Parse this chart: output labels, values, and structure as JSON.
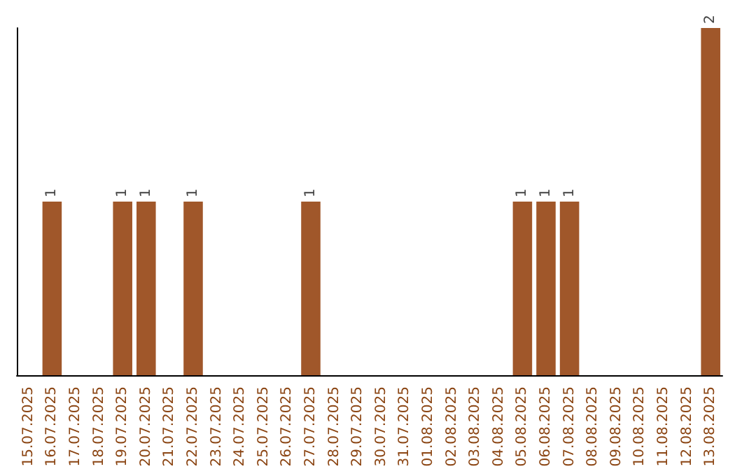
{
  "chart_data": {
    "type": "bar",
    "categories": [
      "15.07.2025",
      "16.07.2025",
      "17.07.2025",
      "18.07.2025",
      "19.07.2025",
      "20.07.2025",
      "21.07.2025",
      "22.07.2025",
      "23.07.2025",
      "24.07.2025",
      "25.07.2025",
      "26.07.2025",
      "27.07.2025",
      "28.07.2025",
      "29.07.2025",
      "30.07.2025",
      "31.07.2025",
      "01.08.2025",
      "02.08.2025",
      "03.08.2025",
      "04.08.2025",
      "05.08.2025",
      "06.08.2025",
      "07.08.2025",
      "08.08.2025",
      "09.08.2025",
      "10.08.2025",
      "11.08.2025",
      "12.08.2025",
      "13.08.2025"
    ],
    "values": [
      0,
      1,
      0,
      0,
      1,
      1,
      0,
      1,
      0,
      0,
      0,
      0,
      1,
      0,
      0,
      0,
      0,
      0,
      0,
      0,
      0,
      1,
      1,
      1,
      0,
      0,
      0,
      0,
      0,
      2
    ],
    "value_labels": [
      null,
      "1",
      null,
      null,
      "1",
      "1",
      null,
      "1",
      null,
      null,
      null,
      null,
      "1",
      null,
      null,
      null,
      null,
      null,
      null,
      null,
      null,
      "1",
      "1",
      "1",
      null,
      null,
      null,
      null,
      null,
      "2"
    ],
    "color": "#a0572a",
    "tick_labels": "x"
  }
}
